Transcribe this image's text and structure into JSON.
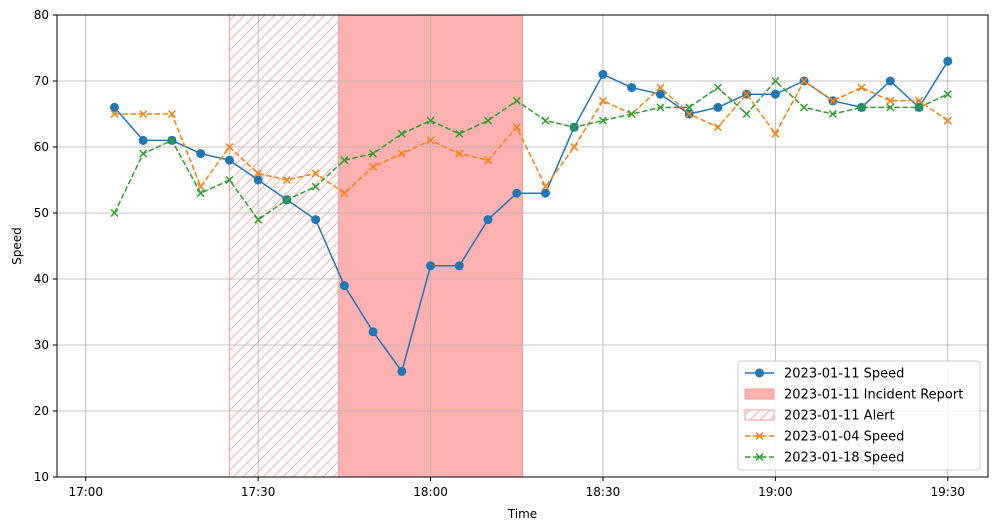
{
  "chart_data": {
    "type": "line",
    "xlabel": "Time",
    "ylabel": "Speed",
    "ylim": [
      10,
      80
    ],
    "xlim": [
      "16:55",
      "19:37"
    ],
    "grid": true,
    "legend_location": "lower-right",
    "x_ticks": [
      "17:00",
      "17:30",
      "18:00",
      "18:30",
      "19:00",
      "19:30"
    ],
    "y_ticks": [
      10,
      20,
      30,
      40,
      50,
      60,
      70,
      80
    ],
    "x": [
      "17:05",
      "17:10",
      "17:15",
      "17:20",
      "17:25",
      "17:30",
      "17:35",
      "17:40",
      "17:45",
      "17:50",
      "17:55",
      "18:00",
      "18:05",
      "18:10",
      "18:15",
      "18:20",
      "18:25",
      "18:30",
      "18:35",
      "18:40",
      "18:45",
      "18:50",
      "18:55",
      "19:00",
      "19:05",
      "19:10",
      "19:15",
      "19:20",
      "19:25",
      "19:30"
    ],
    "series": [
      {
        "name": "2023-01-11 Speed",
        "color": "#1f77b4",
        "marker": "circle",
        "linestyle": "solid",
        "values": [
          66,
          61,
          61,
          59,
          58,
          55,
          52,
          49,
          39,
          32,
          26,
          42,
          42,
          49,
          53,
          53,
          63,
          71,
          69,
          68,
          65,
          66,
          68,
          68,
          70,
          67,
          66,
          70,
          66,
          73
        ]
      },
      {
        "name": "2023-01-04 Speed",
        "color": "#ff7f0e",
        "marker": "x",
        "linestyle": "dashed",
        "values": [
          65,
          65,
          65,
          54,
          60,
          56,
          55,
          56,
          53,
          57,
          59,
          61,
          59,
          58,
          63,
          54,
          60,
          67,
          65,
          69,
          65,
          63,
          68,
          62,
          70,
          67,
          69,
          67,
          67,
          64
        ]
      },
      {
        "name": "2023-01-18 Speed",
        "color": "#2ca02c",
        "marker": "x",
        "linestyle": "dashed",
        "values": [
          50,
          59,
          61,
          53,
          55,
          49,
          52,
          54,
          58,
          59,
          62,
          64,
          62,
          64,
          67,
          64,
          63,
          64,
          65,
          66,
          66,
          69,
          65,
          70,
          66,
          65,
          66,
          66,
          66,
          68
        ]
      }
    ],
    "spans": [
      {
        "name": "2023-01-11 Alert",
        "start": "17:25",
        "end": "17:45",
        "style": "hatched",
        "color": "#ff9999"
      },
      {
        "name": "2023-01-11 Incident Report",
        "start": "17:44",
        "end": "18:16",
        "style": "filled",
        "color": "#ffb0b0"
      }
    ],
    "legend": [
      {
        "label": "2023-01-11 Speed",
        "kind": "line-circle",
        "color": "#1f77b4"
      },
      {
        "label": "2023-01-11 Incident Report",
        "kind": "patch-filled",
        "color": "#ffb0b0"
      },
      {
        "label": "2023-01-11 Alert",
        "kind": "patch-hatched",
        "color": "#ff9999"
      },
      {
        "label": "2023-01-04 Speed",
        "kind": "line-x-dashed",
        "color": "#ff7f0e"
      },
      {
        "label": "2023-01-18 Speed",
        "kind": "line-x-dashed",
        "color": "#2ca02c"
      }
    ]
  }
}
